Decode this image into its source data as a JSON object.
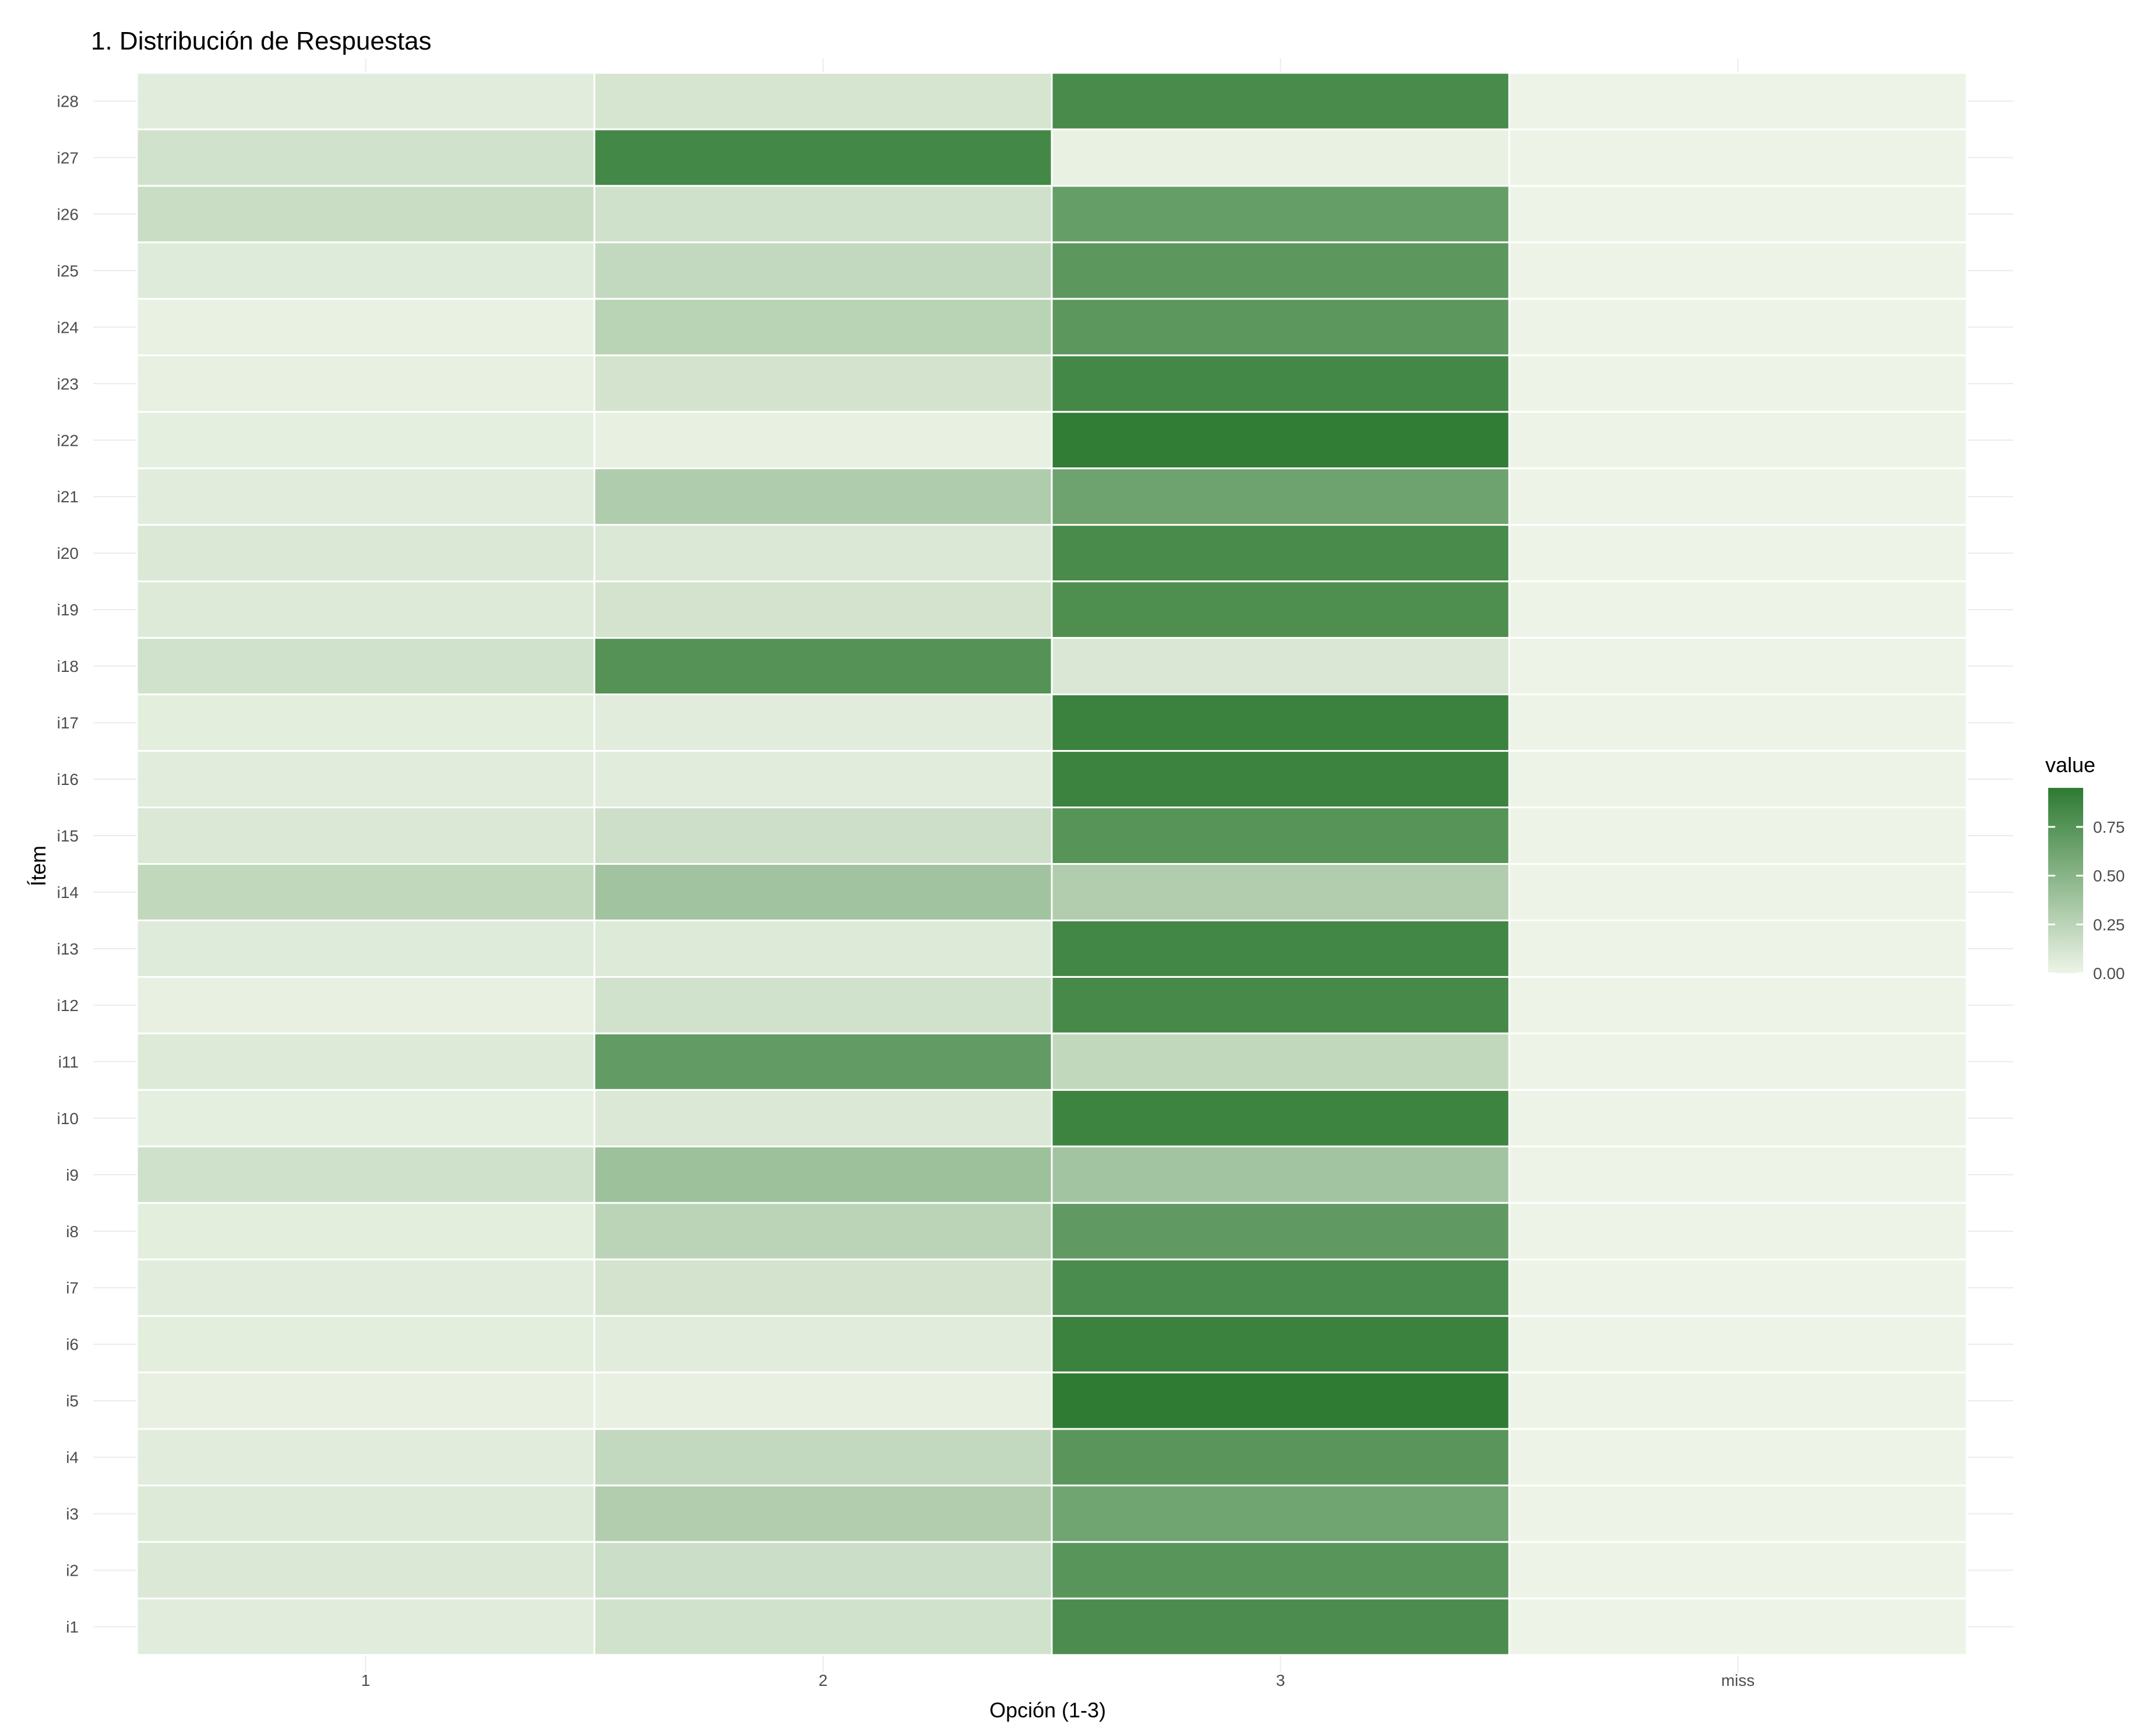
{
  "chart_data": {
    "type": "heatmap",
    "title": "1. Distribución de Respuestas",
    "xlabel": "Opción (1-3)",
    "ylabel": "Ítem",
    "categories": [
      "1",
      "2",
      "3",
      "miss"
    ],
    "items": [
      "i28",
      "i27",
      "i26",
      "i25",
      "i24",
      "i23",
      "i22",
      "i21",
      "i20",
      "i19",
      "i18",
      "i17",
      "i16",
      "i15",
      "i14",
      "i13",
      "i12",
      "i11",
      "i10",
      "i9",
      "i8",
      "i7",
      "i6",
      "i5",
      "i4",
      "i3",
      "i2",
      "i1"
    ],
    "values": [
      [
        0.06,
        0.12,
        0.82,
        0.0
      ],
      [
        0.14,
        0.84,
        0.02,
        0.0
      ],
      [
        0.18,
        0.15,
        0.67,
        0.0
      ],
      [
        0.07,
        0.21,
        0.72,
        0.0
      ],
      [
        0.02,
        0.26,
        0.72,
        0.0
      ],
      [
        0.03,
        0.13,
        0.84,
        0.0
      ],
      [
        0.04,
        0.03,
        0.93,
        0.0
      ],
      [
        0.06,
        0.31,
        0.63,
        0.0
      ],
      [
        0.09,
        0.09,
        0.82,
        0.0
      ],
      [
        0.08,
        0.13,
        0.79,
        0.0
      ],
      [
        0.14,
        0.76,
        0.1,
        0.0
      ],
      [
        0.05,
        0.06,
        0.89,
        0.0
      ],
      [
        0.06,
        0.06,
        0.88,
        0.0
      ],
      [
        0.09,
        0.16,
        0.75,
        0.0
      ],
      [
        0.22,
        0.38,
        0.3,
        0.0
      ],
      [
        0.07,
        0.08,
        0.85,
        0.0
      ],
      [
        0.03,
        0.14,
        0.83,
        0.0
      ],
      [
        0.08,
        0.69,
        0.22,
        0.0
      ],
      [
        0.04,
        0.09,
        0.87,
        0.0
      ],
      [
        0.15,
        0.4,
        0.37,
        0.0
      ],
      [
        0.05,
        0.25,
        0.7,
        0.0
      ],
      [
        0.06,
        0.13,
        0.81,
        0.0
      ],
      [
        0.05,
        0.06,
        0.89,
        0.0
      ],
      [
        0.03,
        0.03,
        0.94,
        0.0
      ],
      [
        0.06,
        0.21,
        0.73,
        0.0
      ],
      [
        0.08,
        0.3,
        0.62,
        0.0
      ],
      [
        0.09,
        0.17,
        0.74,
        0.0
      ],
      [
        0.06,
        0.14,
        0.8,
        0.0
      ]
    ],
    "legend": {
      "title": "value",
      "ticks": [
        "0.75",
        "0.50",
        "0.25",
        "0.00"
      ],
      "tick_values": [
        0.75,
        0.5,
        0.25,
        0.0
      ],
      "range": [
        0.0,
        0.95
      ],
      "placement": "right"
    },
    "color_low": "#edf4e7",
    "color_high": "#2e7a32",
    "grid": true
  }
}
